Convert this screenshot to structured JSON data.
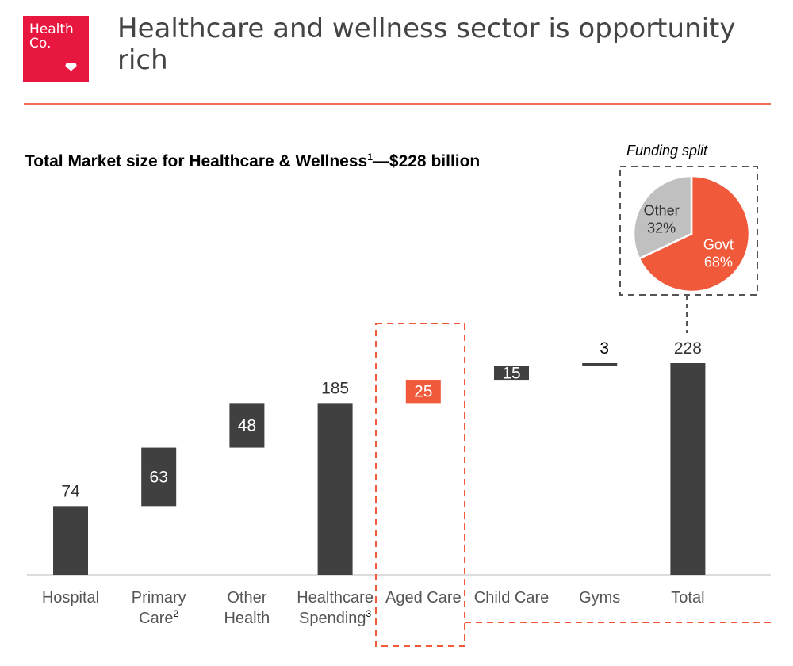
{
  "logo": {
    "text_line1": "Health",
    "text_line2": "Co.",
    "color": "#e8173f"
  },
  "header": {
    "title": "Healthcare and wellness sector is opportunity rich"
  },
  "subtitle": {
    "main": "Total Market size for Healthcare & Wellness",
    "footnote": "1",
    "suffix": "—$228 billion"
  },
  "chart_data": [
    {
      "type": "waterfall",
      "categories": [
        "Hospital",
        "Primary Care",
        "Other Health",
        "Healthcare Spending",
        "Aged Care",
        "Child Care",
        "Gyms",
        "Total"
      ],
      "category_lines": [
        [
          "Hospital"
        ],
        [
          "Primary",
          "Care"
        ],
        [
          "Other",
          "Health"
        ],
        [
          "Healthcare",
          "Spending"
        ],
        [
          "Aged Care"
        ],
        [
          "Child Care"
        ],
        [
          "Gyms"
        ],
        [
          "Total"
        ]
      ],
      "footnotes": {
        "Primary Care": "2",
        "Healthcare Spending": "3"
      },
      "values": [
        74,
        63,
        48,
        185,
        25,
        15,
        3,
        228
      ],
      "kinds": [
        "total",
        "delta",
        "delta",
        "total",
        "delta",
        "delta",
        "delta",
        "total"
      ],
      "data_labels": [
        "74",
        "63",
        "48",
        "185",
        "25",
        "15",
        "3",
        "228"
      ],
      "highlight": "Aged Care",
      "colors": {
        "bar": "#404040",
        "highlight": "#f05a3a"
      },
      "ylim": [
        0,
        228
      ],
      "grid": false
    },
    {
      "type": "pie",
      "title": "Funding split",
      "slices": [
        {
          "name": "Govt",
          "label": "68%",
          "value": 68,
          "color": "#f05a3a"
        },
        {
          "name": "Other",
          "label": "32%",
          "value": 32,
          "color": "#c0c0c0"
        }
      ]
    }
  ]
}
